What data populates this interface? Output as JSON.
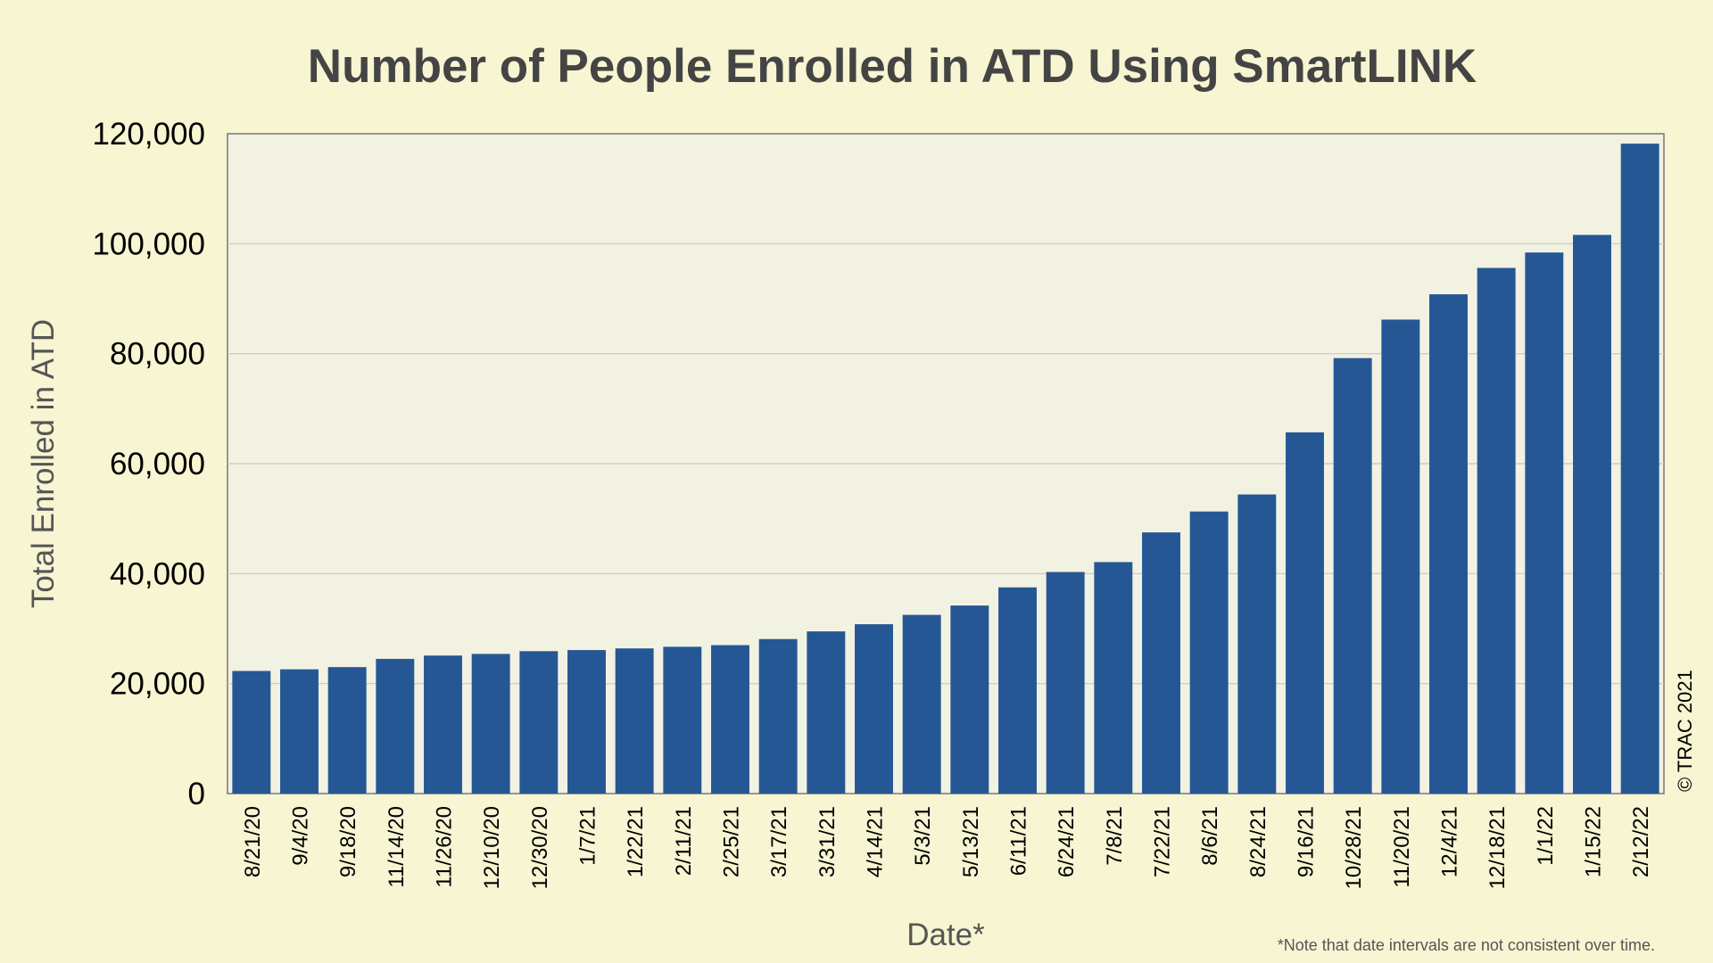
{
  "chart_data": {
    "type": "bar",
    "title": "Number of People Enrolled in ATD Using SmartLINK",
    "xlabel": "Date*",
    "ylabel": "Total Enrolled in ATD",
    "note": "*Note that date intervals are not consistent over time.",
    "copyright": "© TRAC 2021",
    "ylim": [
      0,
      120000
    ],
    "yticks": [
      0,
      20000,
      40000,
      60000,
      80000,
      100000,
      120000
    ],
    "ytick_labels": [
      "0",
      "20,000",
      "40,000",
      "60,000",
      "80,000",
      "100,000",
      "120,000"
    ],
    "grid": true,
    "bar_color": "#265795",
    "categories": [
      "8/21/20",
      "9/4/20",
      "9/18/20",
      "11/14/20",
      "11/26/20",
      "12/10/20",
      "12/30/20",
      "1/7/21",
      "1/22/21",
      "2/11/21",
      "2/25/21",
      "3/17/21",
      "3/31/21",
      "4/14/21",
      "5/3/21",
      "5/13/21",
      "6/11/21",
      "6/24/21",
      "7/8/21",
      "7/22/21",
      "8/6/21",
      "8/24/21",
      "9/16/21",
      "10/28/21",
      "11/20/21",
      "12/4/21",
      "12/18/21",
      "1/1/22",
      "1/15/22",
      "2/12/22"
    ],
    "values": [
      22300,
      22600,
      23000,
      24500,
      25100,
      25400,
      25900,
      26100,
      26400,
      26700,
      27000,
      28100,
      29500,
      30800,
      32500,
      34200,
      37500,
      40300,
      42100,
      47500,
      51300,
      54400,
      65700,
      79200,
      86200,
      90800,
      95600,
      98400,
      101600,
      118200
    ]
  }
}
